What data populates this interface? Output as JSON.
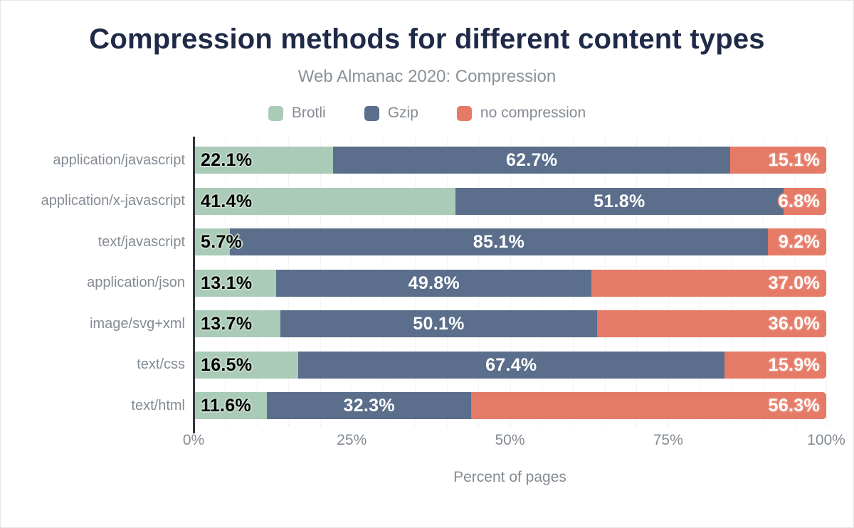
{
  "chart_data": {
    "type": "bar",
    "orientation": "horizontal",
    "stacked": true,
    "title": "Compression methods for different content types",
    "subtitle": "Web Almanac 2020: Compression",
    "xlabel": "Percent of pages",
    "xlim": [
      0,
      100
    ],
    "x_ticks": [
      "0%",
      "25%",
      "50%",
      "75%",
      "100%"
    ],
    "x_tick_step_pct": 25,
    "grid": "vertical-dotted",
    "grid_step_pct": 5,
    "legend_position": "top",
    "categories": [
      "application/javascript",
      "application/x-javascript",
      "text/javascript",
      "application/json",
      "image/svg+xml",
      "text/css",
      "text/html"
    ],
    "series": [
      {
        "name": "Brotli",
        "color": "#a9cbb8",
        "label_color": "#000000",
        "halo_color": "#c9ded1",
        "label_align": "start",
        "values": [
          22.1,
          41.4,
          5.7,
          13.1,
          13.7,
          16.5,
          11.6
        ]
      },
      {
        "name": "Gzip",
        "color": "#5b6e8c",
        "label_color": "#ffffff",
        "halo_color": "#5b6e8c",
        "label_align": "center",
        "values": [
          62.7,
          51.8,
          85.1,
          49.8,
          50.1,
          67.4,
          32.3
        ]
      },
      {
        "name": "no compression",
        "color": "#e57a66",
        "label_color": "#ffffff",
        "halo_color": "#e88d7c",
        "label_align": "end",
        "values": [
          15.1,
          6.8,
          9.2,
          37.0,
          36.0,
          15.9,
          56.3
        ]
      }
    ],
    "value_label_format": "one-decimal-percent"
  },
  "style": {
    "title_color": "#1e2a47",
    "text_gray": "#848b93",
    "axis_color": "#31363c",
    "grid_color": "#e9e9e9",
    "background": "#ffffff"
  }
}
